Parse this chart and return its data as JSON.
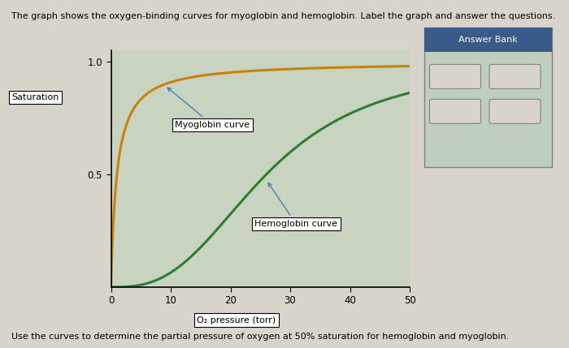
{
  "title": "The graph shows the oxygen-binding curves for myoglobin and hemoglobin. Label the graph and answer the questions.",
  "footer": "Use the curves to determine the partial pressure of oxygen at 50% saturation for hemoglobin and myoglobin.",
  "xlabel": "O₂ pressure (torr)",
  "ylabel": "Saturation",
  "xlim": [
    0,
    50
  ],
  "ylim": [
    0,
    1.05
  ],
  "yticks": [
    0.5,
    1.0
  ],
  "xticks": [
    0,
    10,
    20,
    30,
    40,
    50
  ],
  "myoglobin_color": "#C8820A",
  "hemoglobin_color": "#2E7D32",
  "background_color": "#D8D4CC",
  "plot_bg_color": "#C8D4C0",
  "answer_bank_header_color": "#3A5A8A",
  "answer_bank_body_color": "#C0CEC0",
  "answer_bank_title": "Answer Bank",
  "myoglobin_label": "Myoglobin curve",
  "hemoglobin_label": "Hemoglobin curve",
  "saturation_label": "Saturation",
  "P50_mb": 1.0,
  "P50_hb": 26.0,
  "hill_n": 2.8
}
